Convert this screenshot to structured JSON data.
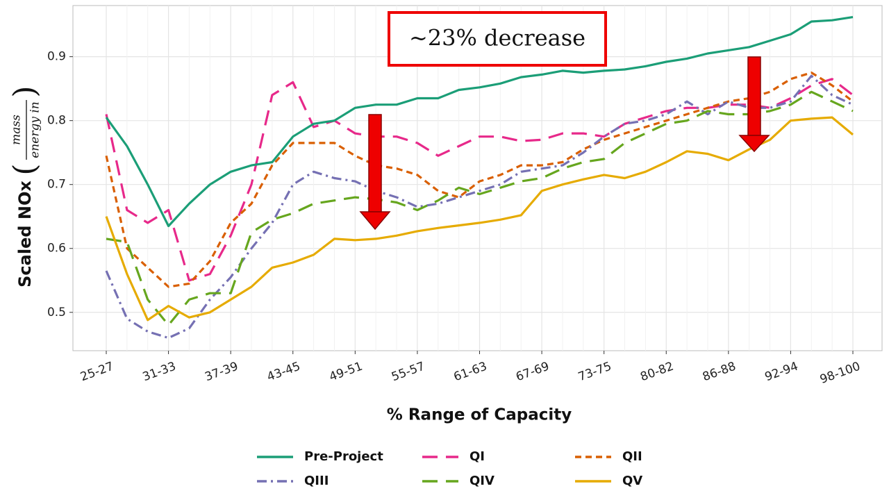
{
  "chart_data": {
    "type": "line",
    "ylabel": "Scaled NOx",
    "ylabel_fraction": {
      "numerator": "mass",
      "denominator": "energy in"
    },
    "xlabel": "% Range of Capacity",
    "annotation": "~23% decrease",
    "categories": [
      "25-27",
      null,
      null,
      "31-33",
      null,
      null,
      "37-39",
      null,
      null,
      "43-45",
      null,
      null,
      "49-51",
      null,
      null,
      "55-57",
      null,
      null,
      "61-63",
      null,
      null,
      "67-69",
      null,
      null,
      "73-75",
      null,
      null,
      "80-82",
      null,
      null,
      "86-88",
      null,
      null,
      "92-94",
      null,
      null,
      "98-100"
    ],
    "ylim": [
      0.44,
      0.98
    ],
    "yticks": [
      0.5,
      0.6,
      0.7,
      0.8,
      0.9
    ],
    "grid": true,
    "legend": "bottom",
    "series": [
      {
        "name": "Pre-Project",
        "color": "#1b9e77",
        "style": "solid",
        "values": [
          0.805,
          0.76,
          0.7,
          0.635,
          0.67,
          0.7,
          0.72,
          0.73,
          0.735,
          0.775,
          0.795,
          0.8,
          0.82,
          0.825,
          0.825,
          0.835,
          0.835,
          0.848,
          0.852,
          0.858,
          0.868,
          0.872,
          0.878,
          0.875,
          0.878,
          0.88,
          0.885,
          0.892,
          0.897,
          0.905,
          0.91,
          0.915,
          0.925,
          0.935,
          0.955,
          0.957,
          0.962
        ]
      },
      {
        "name": "QI",
        "color": "#e7298a",
        "style": "longdash",
        "values": [
          0.81,
          0.66,
          0.64,
          0.66,
          0.55,
          0.56,
          0.62,
          0.7,
          0.84,
          0.86,
          0.79,
          0.8,
          0.78,
          0.775,
          0.775,
          0.765,
          0.745,
          0.76,
          0.775,
          0.775,
          0.768,
          0.77,
          0.78,
          0.78,
          0.775,
          0.795,
          0.805,
          0.815,
          0.82,
          0.82,
          0.825,
          0.825,
          0.82,
          0.835,
          0.855,
          0.865,
          0.84
        ]
      },
      {
        "name": "QII",
        "color": "#d95f02",
        "style": "dashed",
        "values": [
          0.745,
          0.6,
          0.57,
          0.54,
          0.545,
          0.58,
          0.64,
          0.67,
          0.73,
          0.765,
          0.765,
          0.765,
          0.745,
          0.73,
          0.725,
          0.715,
          0.69,
          0.68,
          0.705,
          0.715,
          0.73,
          0.73,
          0.735,
          0.755,
          0.77,
          0.78,
          0.79,
          0.8,
          0.81,
          0.82,
          0.83,
          0.835,
          0.845,
          0.865,
          0.875,
          0.855,
          0.83
        ]
      },
      {
        "name": "QIII",
        "color": "#7570b3",
        "style": "dashdot",
        "values": [
          0.565,
          0.49,
          0.47,
          0.46,
          0.475,
          0.52,
          0.555,
          0.6,
          0.64,
          0.7,
          0.72,
          0.71,
          0.705,
          0.69,
          0.68,
          0.665,
          0.67,
          0.68,
          0.69,
          0.7,
          0.72,
          0.725,
          0.73,
          0.75,
          0.775,
          0.795,
          0.8,
          0.81,
          0.83,
          0.81,
          0.83,
          0.82,
          0.82,
          0.83,
          0.87,
          0.84,
          0.825
        ]
      },
      {
        "name": "QIV",
        "color": "#66a61e",
        "style": "longdash",
        "values": [
          0.615,
          0.61,
          0.52,
          0.48,
          0.52,
          0.53,
          0.53,
          0.625,
          0.645,
          0.655,
          0.67,
          0.675,
          0.68,
          0.677,
          0.672,
          0.66,
          0.675,
          0.695,
          0.685,
          0.695,
          0.705,
          0.71,
          0.725,
          0.735,
          0.74,
          0.765,
          0.78,
          0.795,
          0.8,
          0.815,
          0.81,
          0.81,
          0.815,
          0.825,
          0.845,
          0.83,
          0.815
        ]
      },
      {
        "name": "QV",
        "color": "#e6ab02",
        "style": "solid",
        "values": [
          0.65,
          0.56,
          0.488,
          0.51,
          0.492,
          0.5,
          0.52,
          0.54,
          0.57,
          0.578,
          0.59,
          0.615,
          0.613,
          0.615,
          0.62,
          0.627,
          0.632,
          0.636,
          0.64,
          0.645,
          0.652,
          0.69,
          0.7,
          0.708,
          0.715,
          0.71,
          0.72,
          0.735,
          0.752,
          0.748,
          0.738,
          0.755,
          0.77,
          0.8,
          0.803,
          0.805,
          0.778
        ]
      }
    ]
  }
}
